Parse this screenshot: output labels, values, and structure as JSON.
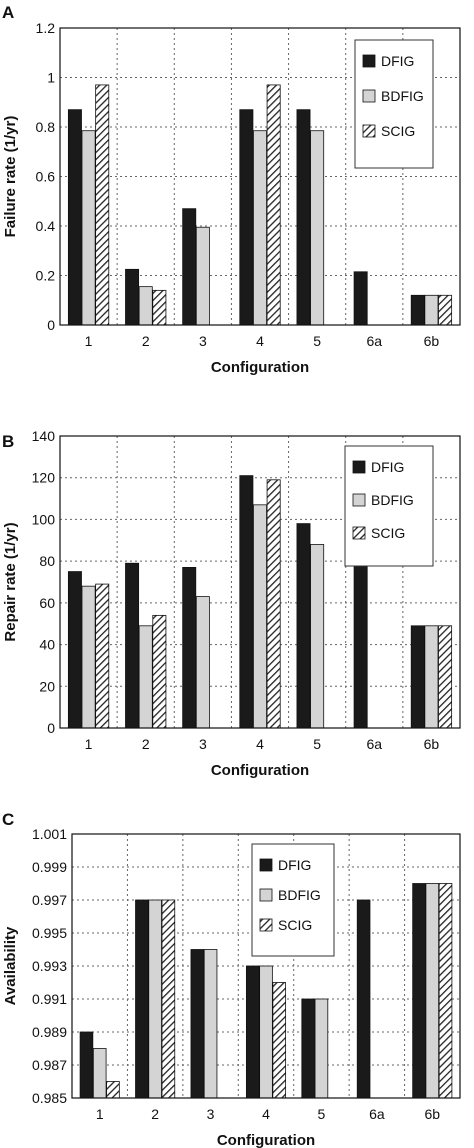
{
  "colors": {
    "DFIG": "#1a1a1a",
    "BDFIG": "#d4d4d4",
    "SCIG": "hatch"
  },
  "chart_data": [
    {
      "type": "bar",
      "panel_label": "A",
      "title": "",
      "xlabel": "Configuration",
      "ylabel": "Failure rate (1/yr)",
      "ylim": [
        0,
        1.2
      ],
      "yticks": [
        "0",
        "0.2",
        "0.4",
        "0.6",
        "0.8",
        "1",
        "1.2"
      ],
      "grid": "dotted",
      "legend_position": "top-right",
      "categories": [
        "1",
        "2",
        "3",
        "4",
        "5",
        "6a",
        "6b"
      ],
      "series": [
        {
          "name": "DFIG",
          "values": [
            0.87,
            0.225,
            0.47,
            0.87,
            0.87,
            0.215,
            0.12
          ]
        },
        {
          "name": "BDFIG",
          "values": [
            0.785,
            0.155,
            0.395,
            0.785,
            0.785,
            null,
            0.12
          ]
        },
        {
          "name": "SCIG",
          "values": [
            0.97,
            0.14,
            null,
            0.97,
            null,
            null,
            0.12
          ]
        }
      ]
    },
    {
      "type": "bar",
      "panel_label": "B",
      "title": "",
      "xlabel": "Configuration",
      "ylabel": "Repair rate (1/yr)",
      "ylim": [
        0,
        140
      ],
      "yticks": [
        "0",
        "20",
        "40",
        "60",
        "80",
        "100",
        "120",
        "140"
      ],
      "grid": "dotted",
      "legend_position": "top-right",
      "categories": [
        "1",
        "2",
        "3",
        "4",
        "5",
        "6a",
        "6b"
      ],
      "series": [
        {
          "name": "DFIG",
          "values": [
            75,
            79,
            77,
            121,
            98,
            78,
            49
          ]
        },
        {
          "name": "BDFIG",
          "values": [
            68,
            49,
            63,
            107,
            88,
            null,
            49
          ]
        },
        {
          "name": "SCIG",
          "values": [
            69,
            54,
            null,
            119,
            null,
            null,
            49
          ]
        }
      ]
    },
    {
      "type": "bar",
      "panel_label": "C",
      "title": "",
      "xlabel": "Configuration",
      "ylabel": "Availability",
      "ylim": [
        0.985,
        1.001
      ],
      "yticks": [
        "0.985",
        "0.987",
        "0.989",
        "0.991",
        "0.993",
        "0.995",
        "0.997",
        "0.999",
        "1.001"
      ],
      "grid": "dotted",
      "legend_position": "top-center",
      "categories": [
        "1",
        "2",
        "3",
        "4",
        "5",
        "6a",
        "6b"
      ],
      "series": [
        {
          "name": "DFIG",
          "values": [
            0.989,
            0.997,
            0.994,
            0.993,
            0.991,
            0.997,
            0.998
          ]
        },
        {
          "name": "BDFIG",
          "values": [
            0.988,
            0.997,
            0.994,
            0.993,
            0.991,
            null,
            0.998
          ]
        },
        {
          "name": "SCIG",
          "values": [
            0.986,
            0.997,
            null,
            0.992,
            null,
            null,
            0.998
          ]
        }
      ]
    }
  ]
}
